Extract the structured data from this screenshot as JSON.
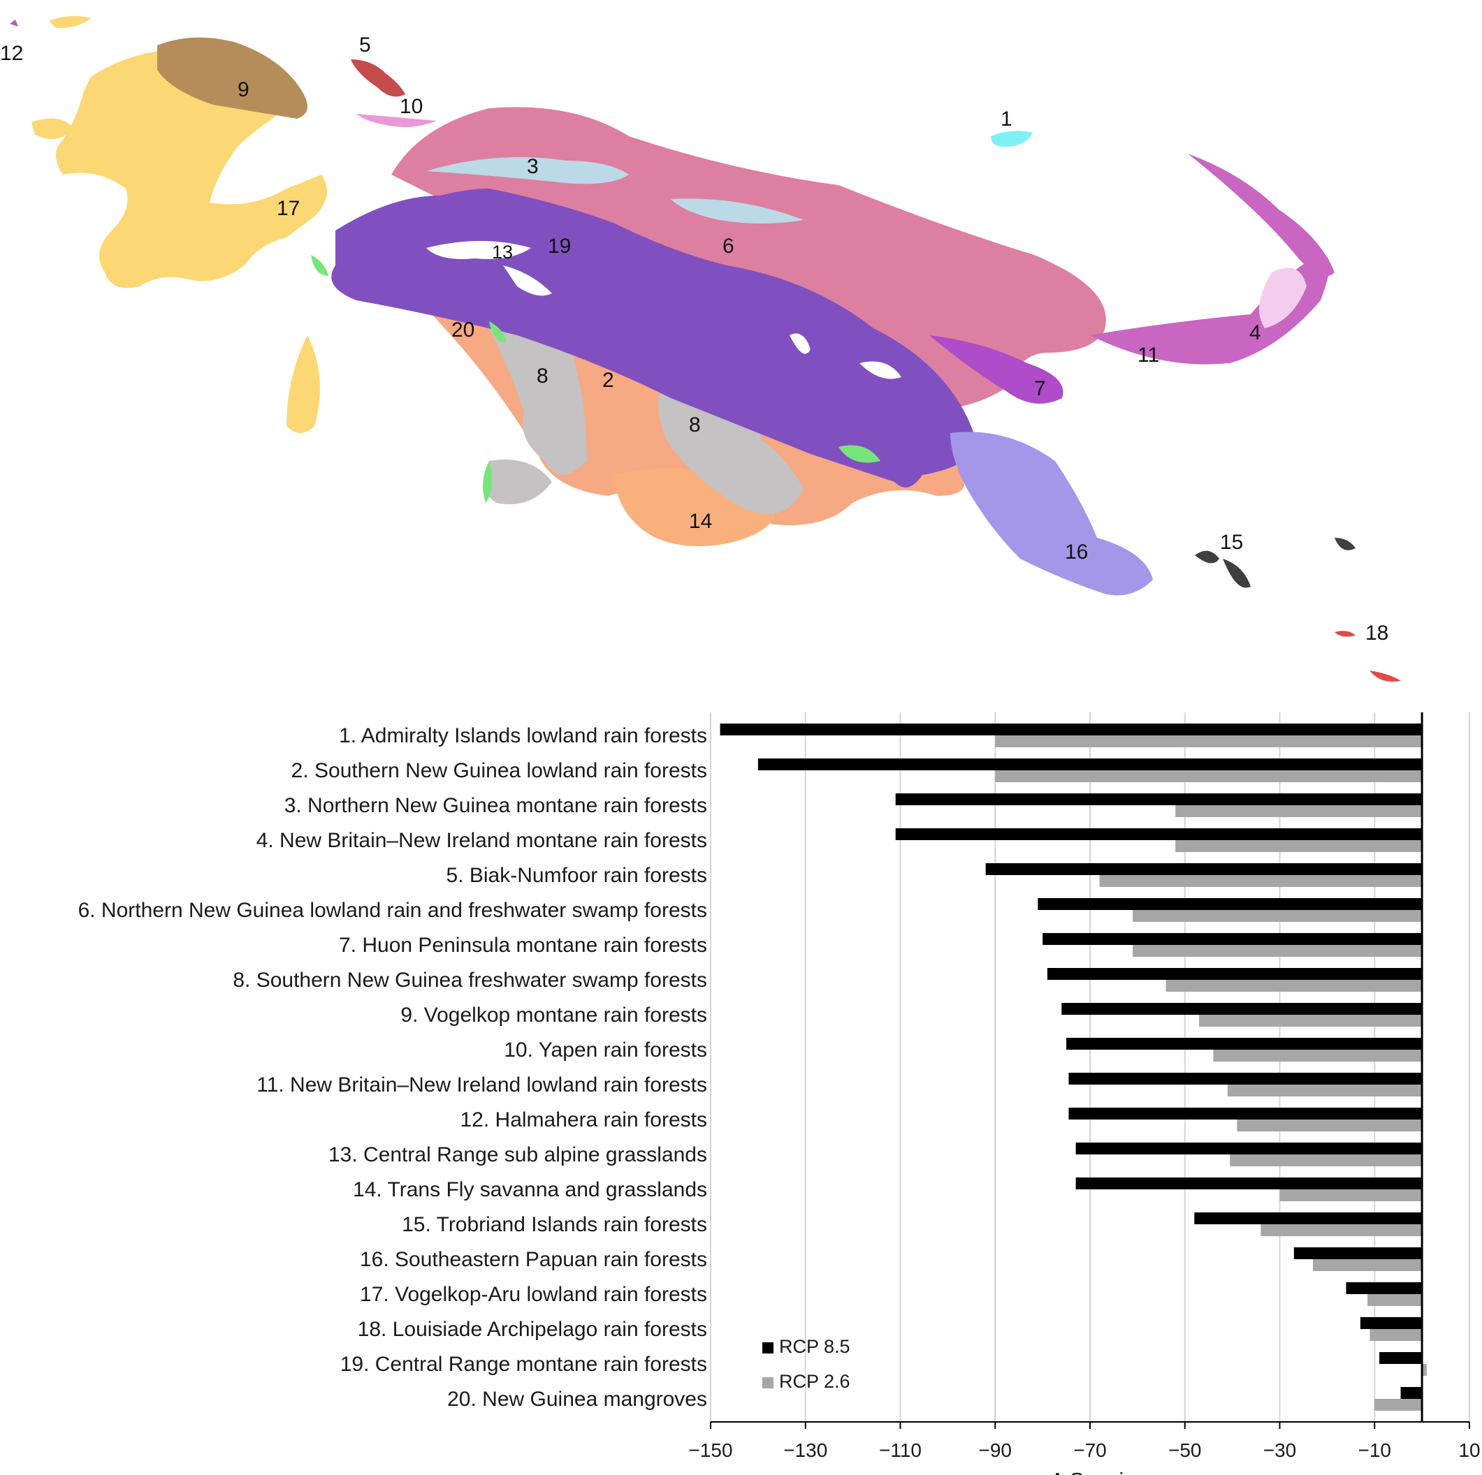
{
  "map": {
    "region_labels": [
      "1",
      "2",
      "3",
      "4",
      "5",
      "6",
      "7",
      "8",
      "8",
      "9",
      "10",
      "11",
      "12",
      "13",
      "14",
      "15",
      "16",
      "17",
      "18",
      "19",
      "20"
    ],
    "colors": {
      "r1": "#7ff0f5",
      "r2": "#f6a982",
      "r3": "#bcd9e6",
      "r4": "#f4cdee",
      "r5": "#c64b4b",
      "r6": "#dd7fa0",
      "r7": "#ae4cc9",
      "r8": "#c4c2c2",
      "r9": "#b58d5a",
      "r10": "#e99ad6",
      "r11": "#c866c2",
      "r12": "#b45bc9",
      "r13": "#ffffff",
      "r14": "#f9b07c",
      "r15": "#3f3f3f",
      "r16": "#a497ea",
      "r17": "#fcd875",
      "r18": "#e24a4a",
      "r19": "#8150c0",
      "r20": "#77e67a"
    }
  },
  "chart_data": {
    "type": "bar",
    "orientation": "horizontal",
    "categories": [
      "1. Admiralty Islands lowland rain forests",
      "2. Southern New Guinea lowland rain forests",
      "3. Northern New Guinea montane rain forests",
      "4. New Britain–New Ireland montane rain forests",
      "5. Biak-Numfoor rain forests",
      "6. Northern New Guinea lowland rain and freshwater swamp forests",
      "7. Huon Peninsula montane rain forests",
      "8. Southern New Guinea freshwater swamp forests",
      "9. Vogelkop montane rain forests",
      "10. Yapen rain forests",
      "11. New Britain–New Ireland lowland rain forests",
      "12. Halmahera rain forests",
      "13. Central Range sub alpine grasslands",
      "14. Trans Fly savanna and grasslands",
      "15. Trobriand Islands rain forests",
      "16. Southeastern Papuan rain forests",
      "17. Vogelkop-Aru lowland rain forests",
      "18. Louisiade Archipelago rain forests",
      "19. Central Range montane rain forests",
      "20. New Guinea mangroves"
    ],
    "series": [
      {
        "name": "RCP 8.5",
        "color": "#000000",
        "values": [
          -148,
          -140,
          -111,
          -111,
          -92,
          -81,
          -80,
          -79,
          -76,
          -75,
          -74.5,
          -74.5,
          -73,
          -73,
          -48,
          -27,
          -16,
          -13,
          -9,
          -4.5
        ]
      },
      {
        "name": "RCP 2.6",
        "color": "#a6a6a6",
        "values": [
          -90,
          -90,
          -52,
          -52,
          -68,
          -61,
          -61,
          -54,
          -47,
          -44,
          -41,
          -39,
          -40.5,
          -30,
          -34,
          -23,
          -11.5,
          -11,
          1,
          -10
        ]
      }
    ],
    "xlabel": "Δ Species",
    "xlim": [
      -150,
      10
    ],
    "xticks": [
      -150,
      -130,
      -110,
      -90,
      -70,
      -50,
      -30,
      -10,
      10
    ],
    "xtick_labels": [
      "−150",
      "−130",
      "−110",
      "−90",
      "−70",
      "−50",
      "−30",
      "−10",
      "10"
    ],
    "grid": true,
    "legend_position": "bottom-left"
  }
}
